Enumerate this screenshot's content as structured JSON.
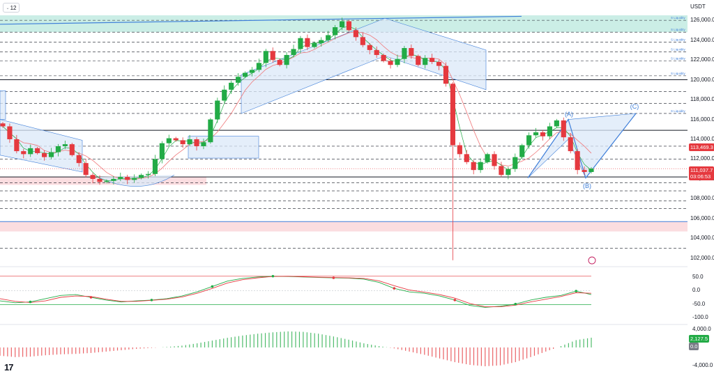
{
  "toolbar": {
    "interval_label": "12",
    "quote_currency": "USDT"
  },
  "price_axis": {
    "ticks": [
      126000,
      124000,
      122000,
      120000,
      118000,
      116000,
      114000,
      112000,
      110000,
      108000,
      106000,
      104000,
      102000
    ],
    "tick_labels": [
      "126,000.0",
      "124,000.0",
      "122,000.0",
      "120,000.0",
      "118,000.0",
      "116,000.0",
      "114,000.0",
      "112,000.0",
      "110,000.0",
      "108,000.0",
      "106,000.0",
      "104,000.0",
      "102,000.0"
    ],
    "current_price": "111,037.7",
    "countdown": "03:06:53",
    "ma_value": "113,469.3"
  },
  "oscillator_axis": {
    "tick_labels": [
      "50.0",
      "0.0",
      "-50.0",
      "-100.0"
    ],
    "ticks": [
      50,
      0,
      -50,
      -100
    ]
  },
  "histogram_axis": {
    "tick_labels": [
      "4,000.0",
      "-4,000.0"
    ],
    "ticks": [
      4000,
      -4000
    ],
    "current_value": "2,127.5",
    "zero_value": "0.0"
  },
  "annotations": {
    "liquidity_label": "S Liquidity",
    "wave_a": "(A)",
    "wave_b": "(B)",
    "wave_c": "(C)"
  },
  "colors": {
    "bull": "#22ab46",
    "bear": "#e5393f",
    "ma": "#f0787a",
    "channel_fill": "#dbe8f8",
    "channel_stroke": "#3f7fd9",
    "liquidity_zone": "#cbeee6",
    "demand_zone": "#fbdde0"
  },
  "chart_data": [
    {
      "type": "candlestick",
      "quote": "USDT",
      "interval": "12",
      "ylim": [
        101500,
        126500
      ],
      "liquidity_levels": [
        126000,
        124800,
        123800,
        122800,
        121900,
        120400,
        116600
      ],
      "horizontal_levels": [
        120000,
        114900,
        110200,
        105700
      ],
      "dashed_levels": [
        118800,
        117600,
        113300,
        112000,
        109600,
        108800,
        107800,
        107000,
        103000
      ],
      "close_path": [
        115300,
        114000,
        112800,
        112500,
        113100,
        112600,
        112200,
        112700,
        113300,
        113500,
        112400,
        111600,
        110400,
        110000,
        109700,
        109800,
        110000,
        110200,
        109900,
        110100,
        110400,
        110500,
        112000,
        113600,
        114100,
        113900,
        113500,
        114000,
        113300,
        113700,
        116000,
        117900,
        119000,
        119700,
        120300,
        120700,
        121000,
        121700,
        122900,
        122000,
        121500,
        122500,
        123100,
        124200,
        123300,
        123700,
        124000,
        124500,
        125300,
        125900,
        125000,
        124300,
        123500,
        123000,
        122500,
        121900,
        121500,
        122100,
        123200,
        122400,
        121500,
        122200,
        121800,
        121400,
        119600,
        113400,
        112500,
        111700,
        110900,
        111700,
        112500,
        111300,
        110400,
        111000,
        112200,
        113400,
        114400,
        114700,
        114300,
        115300,
        115900,
        114200,
        112800,
        110900,
        110700,
        111037.7
      ]
    },
    {
      "type": "line",
      "name": "",
      "ylim": [
        -115,
        65
      ],
      "bands": [
        53,
        -52
      ],
      "series": [
        {
          "name": "",
          "color": "#22ab46",
          "values": [
            -38,
            -45,
            -42,
            -30,
            -18,
            -15,
            -25,
            -35,
            -42,
            -38,
            -35,
            -30,
            -20,
            -5,
            15,
            35,
            45,
            50,
            53,
            52,
            50,
            48,
            47,
            46,
            42,
            30,
            8,
            -5,
            -10,
            -20,
            -35,
            -55,
            -62,
            -58,
            -50,
            -35,
            -25,
            -18,
            -2,
            -15
          ]
        },
        {
          "name": "",
          "color": "#e5393f",
          "values": [
            -30,
            -40,
            -44,
            -38,
            -25,
            -20,
            -22,
            -32,
            -40,
            -40,
            -36,
            -32,
            -24,
            -10,
            8,
            28,
            40,
            47,
            52,
            53,
            51,
            49,
            48,
            47,
            45,
            36,
            18,
            2,
            -6,
            -15,
            -28,
            -48,
            -60,
            -60,
            -54,
            -42,
            -32,
            -22,
            -8,
            -10
          ]
        }
      ]
    },
    {
      "type": "bar",
      "name": "",
      "ylim": [
        -4400,
        4400
      ],
      "values": [
        -1800,
        -2100,
        -2000,
        -1700,
        -1500,
        -1400,
        -1200,
        -900,
        -600,
        -300,
        -100,
        100,
        400,
        900,
        1500,
        2100,
        2600,
        3000,
        3300,
        3500,
        3400,
        3000,
        2400,
        1700,
        900,
        300,
        -200,
        -900,
        -1600,
        -2400,
        -3200,
        -3800,
        -4100,
        -3900,
        -3200,
        -2100,
        -900,
        300,
        1600,
        2127.5
      ]
    }
  ]
}
